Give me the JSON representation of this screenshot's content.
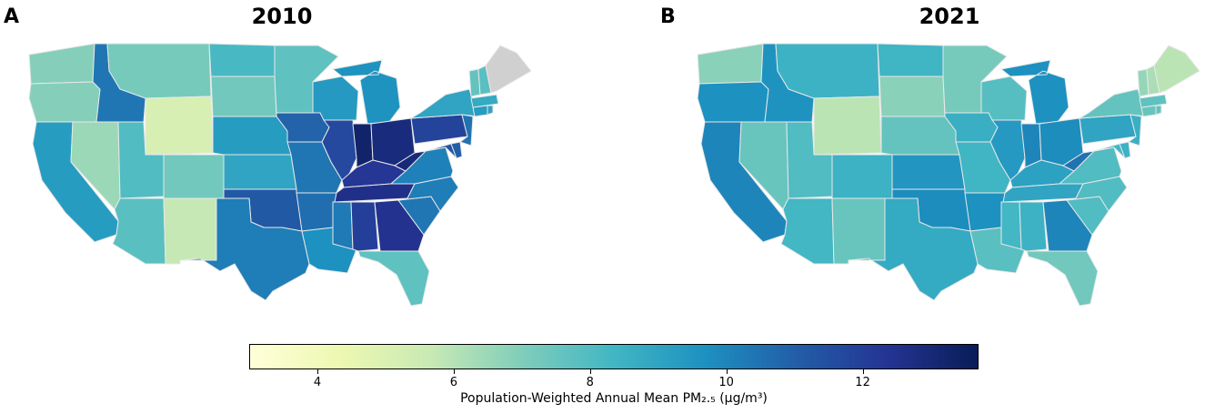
{
  "panels": [
    {
      "letter": "A",
      "title": "2010"
    },
    {
      "letter": "B",
      "title": "2021"
    }
  ],
  "colorbar": {
    "min": 3.0,
    "max": 13.7,
    "ticks": [
      "4",
      "6",
      "8",
      "10",
      "12"
    ],
    "tick_values": [
      4,
      6,
      8,
      10,
      12
    ],
    "label": "Population-Weighted Annual Mean PM₂.₅ (µg/m³)",
    "colors": [
      "#ffffd9",
      "#edf8b1",
      "#c7e9b4",
      "#7fcdbb",
      "#41b6c4",
      "#1d91c0",
      "#225ea8",
      "#253494",
      "#081d58"
    ]
  },
  "chart_data": {
    "type": "choropleth",
    "variable": "Population-Weighted Annual Mean PM2.5 (µg/m³)",
    "missing_color": "#d0d0d0",
    "years": [
      "2010",
      "2021"
    ],
    "states": {
      "WA": [
        6.9,
        6.8
      ],
      "OR": [
        6.9,
        9.7
      ],
      "CA": [
        9.3,
        10.0
      ],
      "NV": [
        6.5,
        7.5
      ],
      "ID": [
        10.4,
        9.6
      ],
      "MT": [
        7.2,
        8.5
      ],
      "WY": [
        5.1,
        5.9
      ],
      "UT": [
        8.0,
        8.0
      ],
      "AZ": [
        7.8,
        8.3
      ],
      "CO": [
        7.3,
        8.5
      ],
      "NM": [
        5.7,
        7.5
      ],
      "ND": [
        8.2,
        8.4
      ],
      "SD": [
        7.3,
        6.8
      ],
      "NE": [
        9.3,
        7.6
      ],
      "KS": [
        9.0,
        9.5
      ],
      "OK": [
        11.2,
        9.8
      ],
      "TX": [
        10.2,
        8.8
      ],
      "MN": [
        7.7,
        7.2
      ],
      "IA": [
        10.9,
        8.6
      ],
      "MO": [
        10.4,
        8.4
      ],
      "AR": [
        10.6,
        9.7
      ],
      "LA": [
        9.7,
        7.8
      ],
      "WI": [
        9.4,
        7.9
      ],
      "IL": [
        11.7,
        9.4
      ],
      "MI": [
        9.6,
        9.7
      ],
      "IN": [
        13.3,
        10.0
      ],
      "OH": [
        12.9,
        9.8
      ],
      "KY": [
        12.3,
        9.1
      ],
      "TN": [
        12.6,
        9.0
      ],
      "MS": [
        10.3,
        8.3
      ],
      "AL": [
        12.0,
        8.5
      ],
      "GA": [
        12.5,
        10.0
      ],
      "FL": [
        7.7,
        7.3
      ],
      "SC": [
        10.4,
        8.0
      ],
      "NC": [
        10.2,
        8.0
      ],
      "VA": [
        10.1,
        8.0
      ],
      "WV": [
        13.0,
        10.5
      ],
      "PA": [
        11.9,
        9.0
      ],
      "NY": [
        9.0,
        7.6
      ],
      "VT": [
        7.6,
        6.6
      ],
      "NH": [
        7.8,
        6.2
      ],
      "ME": [
        null,
        5.9
      ],
      "MA": [
        8.8,
        7.7
      ],
      "CT": [
        9.3,
        7.5
      ],
      "RI": [
        9.0,
        7.6
      ],
      "NJ": [
        10.5,
        8.6
      ],
      "DE": [
        11.0,
        8.5
      ],
      "MD": [
        11.3,
        8.3
      ]
    }
  }
}
